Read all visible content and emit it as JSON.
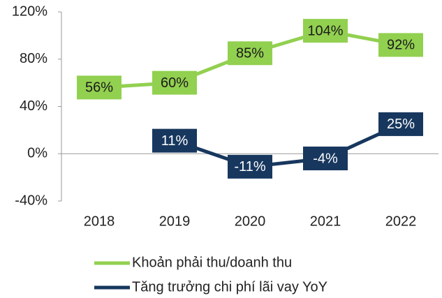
{
  "chart_data": {
    "type": "line",
    "categories": [
      "2018",
      "2019",
      "2020",
      "2021",
      "2022"
    ],
    "series": [
      {
        "name": "Khoản phải thu/doanh thu",
        "color": "#92d050",
        "label_text_color": "#1a1a1a",
        "values": [
          56,
          60,
          85,
          104,
          92
        ],
        "value_labels": [
          "56%",
          "60%",
          "85%",
          "104%",
          "92%"
        ]
      },
      {
        "name": "Tăng trưởng chi phí lãi vay YoY",
        "color": "#17375e",
        "label_text_color": "#ffffff",
        "values": [
          null,
          11,
          -11,
          -4,
          25
        ],
        "value_labels": [
          null,
          "11%",
          "-11%",
          "-4%",
          "25%"
        ]
      }
    ],
    "ylim": [
      -40,
      120
    ],
    "yticks": [
      {
        "value": -40,
        "label": "-40%"
      },
      {
        "value": 0,
        "label": "0%"
      },
      {
        "value": 40,
        "label": "40%"
      },
      {
        "value": 80,
        "label": "80%"
      },
      {
        "value": 120,
        "label": "120%"
      }
    ],
    "grid": false,
    "legend": "bottom"
  }
}
